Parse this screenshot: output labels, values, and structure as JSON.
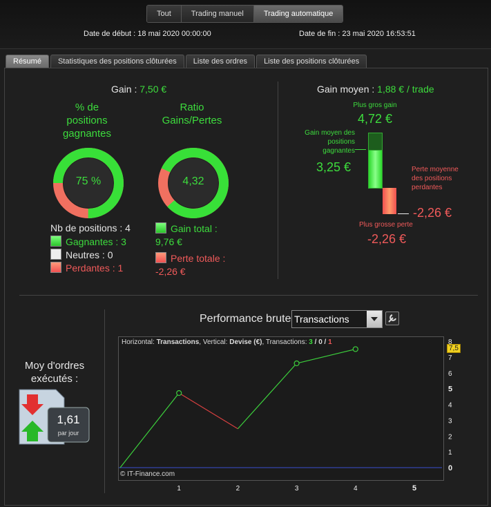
{
  "header": {
    "mode_tabs": [
      "Tout",
      "Trading manuel",
      "Trading automatique"
    ],
    "active_mode": 2,
    "date_start_label": "Date de début :",
    "date_start_value": "18 mai 2020 00:00:00",
    "date_end_label": "Date de fin :",
    "date_end_value": "23 mai 2020 16:53:51"
  },
  "tabs": [
    "Résumé",
    "Statistiques des positions clôturées",
    "Liste des ordres",
    "Liste des positions clôturées"
  ],
  "summary": {
    "gain_label": "Gain :",
    "gain_value": "7,50 €",
    "win_pct_title": "% de positions gagnantes",
    "win_pct_value": "75 %",
    "win_fraction": 0.75,
    "ratio_title": "Ratio Gains/Pertes",
    "ratio_value": "4,32",
    "ratio_fraction": 0.812,
    "nb_positions": "Nb de positions : 4",
    "gagnantes": "Gagnantes : 3",
    "neutres": "Neutres : 0",
    "perdantes": "Perdantes : 1",
    "gain_total": "Gain total : 9,76 €",
    "perte_totale": "Perte totale : -2,26 €",
    "gain_moyen_label": "Gain moyen :",
    "gain_moyen_value": "1,88 € / trade",
    "plus_gros_gain_label": "Plus gros gain",
    "plus_gros_gain_value": "4,72 €",
    "gain_moyen_gagnantes_label": "Gain moyen des positions gagnantes",
    "gain_moyen_gagnantes_value": "3,25 €",
    "perte_moyenne_label": "Perte moyenne des positions perdantes",
    "perte_moyenne_value": "-2,26 €",
    "plus_grosse_perte_label": "Plus grosse perte",
    "plus_grosse_perte_value": "-2,26 €"
  },
  "ordres": {
    "label": "Moy d'ordres exécutés :",
    "value": "1,61",
    "unit": "par jour"
  },
  "performance": {
    "title": "Performance brute",
    "select_value": "Transactions",
    "legend_h_prefix": "Horizontal:",
    "legend_h": "Transactions",
    "legend_v_prefix": ", Vertical:",
    "legend_v": "Devise (€)",
    "legend_t_prefix": ", Transactions:",
    "legend_wins": "3",
    "legend_sep1": " / ",
    "legend_neutral": "0",
    "legend_sep2": " / ",
    "legend_losses": "1",
    "copyright": "© IT-Finance.com",
    "current_value_badge": "7,5"
  },
  "colors": {
    "green": "#3ddc3d",
    "red": "#f05a5a",
    "line_up": "#3ccf3c",
    "line_down": "#d84040",
    "zero_line": "#3a4fd0",
    "badge": "#f0d020"
  },
  "chart_data": {
    "type": "line",
    "x": [
      0,
      1,
      2,
      3,
      4
    ],
    "y": [
      0,
      4.72,
      2.46,
      6.6,
      7.5
    ],
    "xlim": [
      0,
      5
    ],
    "ylim": [
      0,
      8
    ],
    "x_ticks": [
      "1",
      "2",
      "3",
      "4",
      "5"
    ],
    "y_ticks": [
      "0",
      "1",
      "2",
      "3",
      "4",
      "5",
      "6",
      "7",
      "8"
    ],
    "marker_points": [
      1,
      3,
      4
    ]
  }
}
